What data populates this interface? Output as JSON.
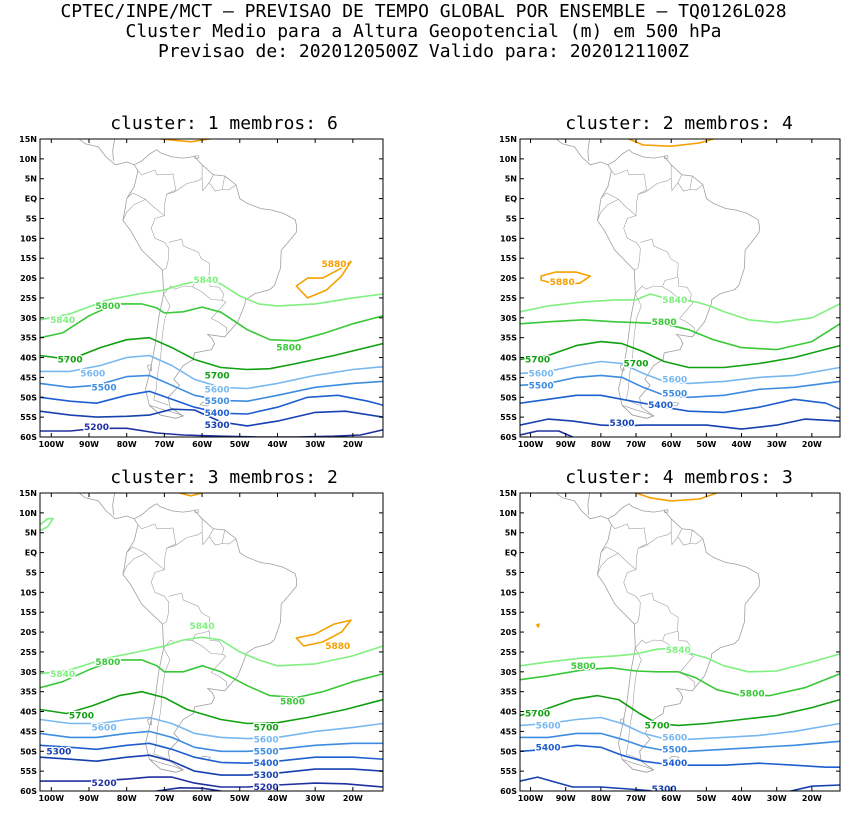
{
  "header": {
    "line1": "CPTEC/INPE/MCT — PREVISAO DE TEMPO GLOBAL POR ENSEMBLE — TQ0126L028",
    "line2": "Cluster Medio para a Altura Geopotencial (m) em 500 hPa",
    "line3": "Previsao de: 2020120500Z    Valido para: 2020121100Z"
  },
  "axes": {
    "lat_labels": [
      "15N",
      "10N",
      "5N",
      "EQ",
      "5S",
      "10S",
      "15S",
      "20S",
      "25S",
      "30S",
      "35S",
      "40S",
      "45S",
      "50S",
      "55S",
      "60S"
    ],
    "lon_labels": [
      "100W",
      "90W",
      "80W",
      "70W",
      "60W",
      "50W",
      "40W",
      "30W",
      "20W"
    ]
  },
  "colors": {
    "c5880": "#f5a000",
    "c5840": "#80f080",
    "c5800": "#38c838",
    "c5700": "#10a010",
    "c5600": "#78b8f0",
    "c5500": "#3c8ce0",
    "c5400": "#1e5ed0",
    "c5300": "#1640b0",
    "c5200": "#2030a0",
    "coast": "#a0a0a0"
  },
  "panels": [
    {
      "title": "cluster: 1   membros: 6",
      "labels": [
        {
          "t": "5880",
          "lat": -16.5,
          "lon": -25,
          "c": "c5880"
        },
        {
          "t": "5840",
          "lat": -20.5,
          "lon": -59,
          "c": "c5840"
        },
        {
          "t": "5840",
          "lat": -30.5,
          "lon": -97,
          "c": "c5840"
        },
        {
          "t": "5800",
          "lat": -27,
          "lon": -85,
          "c": "c5800"
        },
        {
          "t": "5800",
          "lat": -37.5,
          "lon": -37,
          "c": "c5800"
        },
        {
          "t": "5700",
          "lat": -40.5,
          "lon": -95,
          "c": "c5700"
        },
        {
          "t": "5700",
          "lat": -44.5,
          "lon": -56,
          "c": "c5700"
        },
        {
          "t": "5600",
          "lat": -44,
          "lon": -89,
          "c": "c5600"
        },
        {
          "t": "5600",
          "lat": -48,
          "lon": -56,
          "c": "c5600"
        },
        {
          "t": "5500",
          "lat": -47.5,
          "lon": -86,
          "c": "c5500"
        },
        {
          "t": "5500",
          "lat": -51,
          "lon": -56,
          "c": "c5500"
        },
        {
          "t": "5400",
          "lat": -54,
          "lon": -56,
          "c": "c5400"
        },
        {
          "t": "5300",
          "lat": -57,
          "lon": -56,
          "c": "c5300"
        },
        {
          "t": "5200",
          "lat": -57.5,
          "lon": -88,
          "c": "c5200"
        }
      ]
    },
    {
      "title": "cluster: 2   membros: 4",
      "labels": [
        {
          "t": "5880",
          "lat": -21,
          "lon": -91,
          "c": "c5880"
        },
        {
          "t": "5840",
          "lat": -25.5,
          "lon": -59,
          "c": "c5840"
        },
        {
          "t": "5800",
          "lat": -31,
          "lon": -62,
          "c": "c5800"
        },
        {
          "t": "5700",
          "lat": -40.5,
          "lon": -98,
          "c": "c5700"
        },
        {
          "t": "5700",
          "lat": -41.5,
          "lon": -70,
          "c": "c5700"
        },
        {
          "t": "5600",
          "lat": -44,
          "lon": -97,
          "c": "c5600"
        },
        {
          "t": "5600",
          "lat": -45.5,
          "lon": -59,
          "c": "c5600"
        },
        {
          "t": "5500",
          "lat": -47,
          "lon": -97,
          "c": "c5500"
        },
        {
          "t": "5500",
          "lat": -49,
          "lon": -59,
          "c": "c5500"
        },
        {
          "t": "5400",
          "lat": -52,
          "lon": -63,
          "c": "c5400"
        },
        {
          "t": "5300",
          "lat": -56.5,
          "lon": -74,
          "c": "c5300"
        }
      ]
    },
    {
      "title": "cluster: 3   membros: 2",
      "labels": [
        {
          "t": "5880",
          "lat": -23.5,
          "lon": -24,
          "c": "c5880"
        },
        {
          "t": "5840",
          "lat": -18.5,
          "lon": -60,
          "c": "c5840"
        },
        {
          "t": "5840",
          "lat": -30.5,
          "lon": -97,
          "c": "c5840"
        },
        {
          "t": "5800",
          "lat": -27.5,
          "lon": -85,
          "c": "c5800"
        },
        {
          "t": "5800",
          "lat": -37.5,
          "lon": -36,
          "c": "c5800"
        },
        {
          "t": "5700",
          "lat": -41,
          "lon": -92,
          "c": "c5700"
        },
        {
          "t": "5700",
          "lat": -44,
          "lon": -43,
          "c": "c5700"
        },
        {
          "t": "5600",
          "lat": -44,
          "lon": -86,
          "c": "c5600"
        },
        {
          "t": "5600",
          "lat": -47,
          "lon": -43,
          "c": "c5600"
        },
        {
          "t": "5500",
          "lat": -50,
          "lon": -43,
          "c": "c5500"
        },
        {
          "t": "5400",
          "lat": -53,
          "lon": -43,
          "c": "c5400"
        },
        {
          "t": "5300",
          "lat": -56,
          "lon": -43,
          "c": "c5300"
        },
        {
          "t": "5300",
          "lat": -50,
          "lon": -98,
          "c": "c5300"
        },
        {
          "t": "5200",
          "lat": -59,
          "lon": -43,
          "c": "c5200"
        },
        {
          "t": "5200",
          "lat": -58,
          "lon": -86,
          "c": "c5200"
        }
      ]
    },
    {
      "title": "cluster: 4   membros: 3",
      "labels": [
        {
          "t": "5840",
          "lat": -24.5,
          "lon": -58,
          "c": "c5840"
        },
        {
          "t": "5800",
          "lat": -28.5,
          "lon": -85,
          "c": "c5800"
        },
        {
          "t": "5800",
          "lat": -35.5,
          "lon": -37,
          "c": "c5800"
        },
        {
          "t": "5700",
          "lat": -40.5,
          "lon": -98,
          "c": "c5700"
        },
        {
          "t": "5700",
          "lat": -43.5,
          "lon": -64,
          "c": "c5700"
        },
        {
          "t": "5600",
          "lat": -43.5,
          "lon": -95,
          "c": "c5600"
        },
        {
          "t": "5600",
          "lat": -46.5,
          "lon": -59,
          "c": "c5600"
        },
        {
          "t": "5500",
          "lat": -49.5,
          "lon": -59,
          "c": "c5500"
        },
        {
          "t": "5400",
          "lat": -49,
          "lon": -95,
          "c": "c5400"
        },
        {
          "t": "5400",
          "lat": -53,
          "lon": -59,
          "c": "c5400"
        },
        {
          "t": "5300",
          "lat": -59.5,
          "lon": -62,
          "c": "c5300"
        }
      ]
    }
  ]
}
